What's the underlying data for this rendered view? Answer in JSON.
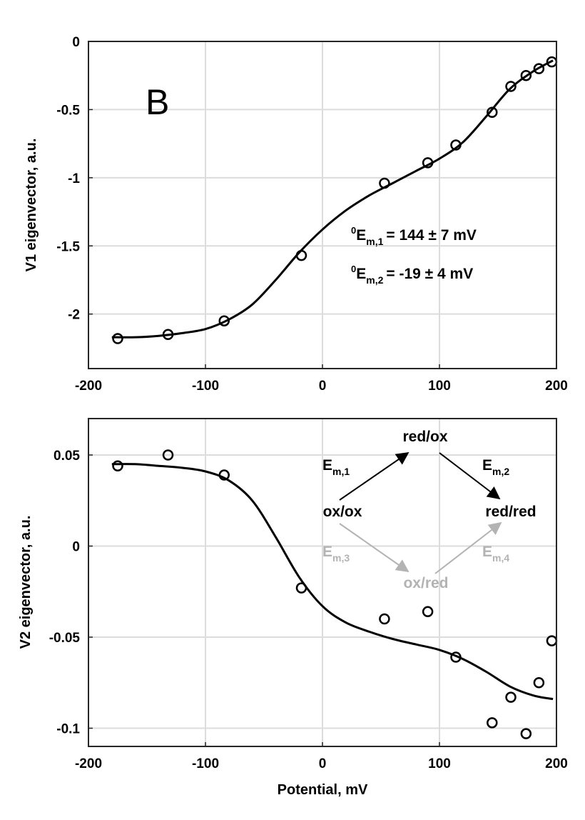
{
  "chart_data": [
    {
      "type": "scatter",
      "panel": "B",
      "xlabel": "",
      "ylabel": "V1 eigenvector, a.u.",
      "xlim": [
        -200,
        200
      ],
      "ylim": [
        -2.4,
        0
      ],
      "xticks": [
        -200,
        -100,
        0,
        100,
        200
      ],
      "yticks": [
        0,
        -0.5,
        -1,
        -1.5,
        -2
      ],
      "ytick_labels": [
        "0",
        "-0.5",
        "-1",
        "-1.5",
        "-2"
      ],
      "grid": true,
      "points": {
        "x": [
          -175,
          -132,
          -84,
          -18,
          53,
          90,
          114,
          145,
          161,
          174,
          185,
          196
        ],
        "y": [
          -2.18,
          -2.15,
          -2.05,
          -1.57,
          -1.04,
          -0.89,
          -0.76,
          -0.52,
          -0.33,
          -0.25,
          -0.2,
          -0.15
        ]
      },
      "fit_curve": {
        "x": [
          -180,
          -160,
          -140,
          -120,
          -100,
          -80,
          -60,
          -40,
          -20,
          0,
          20,
          40,
          60,
          80,
          100,
          120,
          140,
          160,
          180,
          197
        ],
        "y": [
          -2.17,
          -2.17,
          -2.16,
          -2.14,
          -2.11,
          -2.04,
          -1.93,
          -1.75,
          -1.55,
          -1.38,
          -1.24,
          -1.13,
          -1.04,
          -0.95,
          -0.86,
          -0.74,
          -0.55,
          -0.35,
          -0.22,
          -0.14
        ]
      },
      "annotations": {
        "em1": {
          "sup": "0",
          "base": "E",
          "sub": "m,1",
          "value": "=  144 ± 7 mV"
        },
        "em2": {
          "sup": "0",
          "base": "E",
          "sub": "m,2",
          "value": "=  -19 ± 4 mV"
        }
      }
    },
    {
      "type": "scatter",
      "xlabel": "Potential, mV",
      "ylabel": "V2 eigenvector, a.u.",
      "xlim": [
        -200,
        200
      ],
      "ylim": [
        -0.11,
        0.07
      ],
      "xticks": [
        -200,
        -100,
        0,
        100,
        200
      ],
      "yticks": [
        0.05,
        0,
        -0.05,
        -0.1
      ],
      "ytick_labels": [
        "0.05",
        "0",
        "-0.05",
        "-0.1"
      ],
      "grid": true,
      "points": {
        "x": [
          -175,
          -132,
          -84,
          -18,
          53,
          90,
          114,
          145,
          161,
          174,
          185,
          196
        ],
        "y": [
          0.044,
          0.05,
          0.039,
          -0.023,
          -0.04,
          -0.036,
          -0.061,
          -0.097,
          -0.083,
          -0.103,
          -0.075,
          -0.052
        ]
      },
      "fit_curve": {
        "x": [
          -180,
          -160,
          -140,
          -120,
          -100,
          -80,
          -60,
          -40,
          -20,
          0,
          20,
          40,
          60,
          80,
          100,
          120,
          140,
          160,
          180,
          197
        ],
        "y": [
          0.045,
          0.045,
          0.044,
          0.043,
          0.041,
          0.036,
          0.025,
          0.005,
          -0.017,
          -0.033,
          -0.042,
          -0.047,
          -0.051,
          -0.054,
          -0.057,
          -0.062,
          -0.069,
          -0.077,
          -0.082,
          -0.084
        ]
      },
      "scheme": {
        "nodes": {
          "top": "red/ox",
          "left": "ox/ox",
          "right": "red/red",
          "bottom": "ox/red"
        },
        "labels": {
          "em1": {
            "base": "E",
            "sub": "m,1"
          },
          "em2": {
            "base": "E",
            "sub": "m,2"
          },
          "em3": {
            "base": "E",
            "sub": "m,3"
          },
          "em4": {
            "base": "E",
            "sub": "m,4"
          }
        },
        "colors": {
          "primary": "#000000",
          "secondary": "#b3b3b3"
        }
      }
    }
  ]
}
